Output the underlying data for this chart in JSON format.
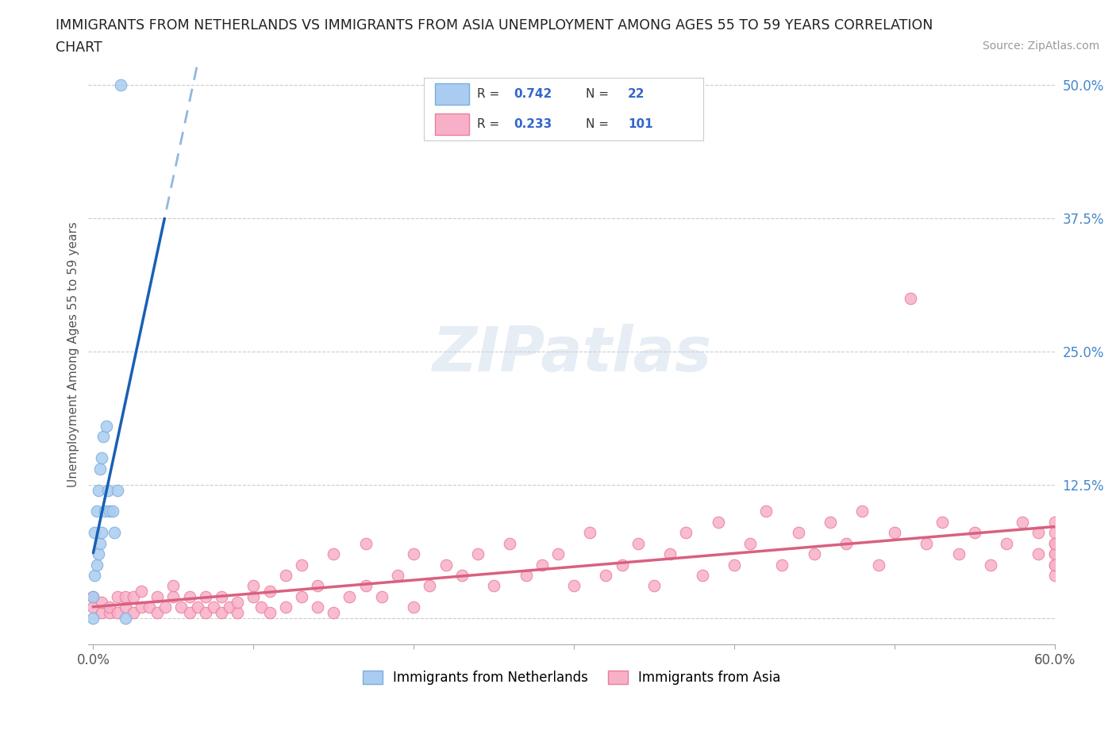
{
  "title_line1": "IMMIGRANTS FROM NETHERLANDS VS IMMIGRANTS FROM ASIA UNEMPLOYMENT AMONG AGES 55 TO 59 YEARS CORRELATION",
  "title_line2": "CHART",
  "source": "Source: ZipAtlas.com",
  "ylabel": "Unemployment Among Ages 55 to 59 years",
  "xlim": [
    -0.003,
    0.6
  ],
  "ylim": [
    -0.025,
    0.52
  ],
  "xtick_positions": [
    0.0,
    0.1,
    0.2,
    0.3,
    0.4,
    0.5,
    0.6
  ],
  "xticklabels": [
    "0.0%",
    "",
    "",
    "",
    "",
    "",
    "60.0%"
  ],
  "ytick_positions": [
    0.0,
    0.125,
    0.25,
    0.375,
    0.5
  ],
  "ytick_labels": [
    "",
    "12.5%",
    "25.0%",
    "37.5%",
    "50.0%"
  ],
  "netherlands_color": "#aaccf0",
  "netherlands_edge": "#7aaedd",
  "netherlands_line_color": "#1a5fb4",
  "netherlands_line_dashed_color": "#90b8e0",
  "asia_color": "#f8b0c8",
  "asia_edge": "#e88098",
  "asia_line_color": "#d96080",
  "R_netherlands": 0.742,
  "N_netherlands": 22,
  "R_asia": 0.233,
  "N_asia": 101,
  "legend_label_netherlands": "Immigrants from Netherlands",
  "legend_label_asia": "Immigrants from Asia",
  "watermark": "ZIPatlas",
  "netherlands_x": [
    0.0,
    0.0,
    0.001,
    0.001,
    0.002,
    0.002,
    0.003,
    0.003,
    0.004,
    0.004,
    0.005,
    0.005,
    0.006,
    0.007,
    0.008,
    0.009,
    0.01,
    0.012,
    0.013,
    0.015,
    0.017,
    0.02
  ],
  "netherlands_y": [
    0.0,
    0.02,
    0.04,
    0.08,
    0.05,
    0.1,
    0.06,
    0.12,
    0.07,
    0.14,
    0.08,
    0.15,
    0.17,
    0.1,
    0.18,
    0.12,
    0.1,
    0.1,
    0.08,
    0.12,
    0.5,
    0.0
  ],
  "asia_x": [
    0.0,
    0.0,
    0.005,
    0.005,
    0.01,
    0.01,
    0.015,
    0.015,
    0.02,
    0.02,
    0.025,
    0.025,
    0.03,
    0.03,
    0.035,
    0.04,
    0.04,
    0.045,
    0.05,
    0.05,
    0.055,
    0.06,
    0.06,
    0.065,
    0.07,
    0.07,
    0.075,
    0.08,
    0.08,
    0.085,
    0.09,
    0.09,
    0.1,
    0.1,
    0.105,
    0.11,
    0.11,
    0.12,
    0.12,
    0.13,
    0.13,
    0.14,
    0.14,
    0.15,
    0.15,
    0.16,
    0.17,
    0.17,
    0.18,
    0.19,
    0.2,
    0.2,
    0.21,
    0.22,
    0.23,
    0.24,
    0.25,
    0.26,
    0.27,
    0.28,
    0.29,
    0.3,
    0.31,
    0.32,
    0.33,
    0.34,
    0.35,
    0.36,
    0.37,
    0.38,
    0.39,
    0.4,
    0.41,
    0.42,
    0.43,
    0.44,
    0.45,
    0.46,
    0.47,
    0.48,
    0.49,
    0.5,
    0.51,
    0.52,
    0.53,
    0.54,
    0.55,
    0.56,
    0.57,
    0.58,
    0.59,
    0.59,
    0.6,
    0.6,
    0.6,
    0.6,
    0.6,
    0.6,
    0.6,
    0.6,
    0.6
  ],
  "asia_y": [
    0.01,
    0.02,
    0.005,
    0.015,
    0.005,
    0.01,
    0.02,
    0.005,
    0.01,
    0.02,
    0.005,
    0.02,
    0.01,
    0.025,
    0.01,
    0.005,
    0.02,
    0.01,
    0.02,
    0.03,
    0.01,
    0.005,
    0.02,
    0.01,
    0.005,
    0.02,
    0.01,
    0.005,
    0.02,
    0.01,
    0.005,
    0.015,
    0.02,
    0.03,
    0.01,
    0.005,
    0.025,
    0.01,
    0.04,
    0.02,
    0.05,
    0.01,
    0.03,
    0.005,
    0.06,
    0.02,
    0.03,
    0.07,
    0.02,
    0.04,
    0.01,
    0.06,
    0.03,
    0.05,
    0.04,
    0.06,
    0.03,
    0.07,
    0.04,
    0.05,
    0.06,
    0.03,
    0.08,
    0.04,
    0.05,
    0.07,
    0.03,
    0.06,
    0.08,
    0.04,
    0.09,
    0.05,
    0.07,
    0.1,
    0.05,
    0.08,
    0.06,
    0.09,
    0.07,
    0.1,
    0.05,
    0.08,
    0.3,
    0.07,
    0.09,
    0.06,
    0.08,
    0.05,
    0.07,
    0.09,
    0.06,
    0.08,
    0.05,
    0.07,
    0.09,
    0.06,
    0.04,
    0.08,
    0.06,
    0.07,
    0.05
  ]
}
